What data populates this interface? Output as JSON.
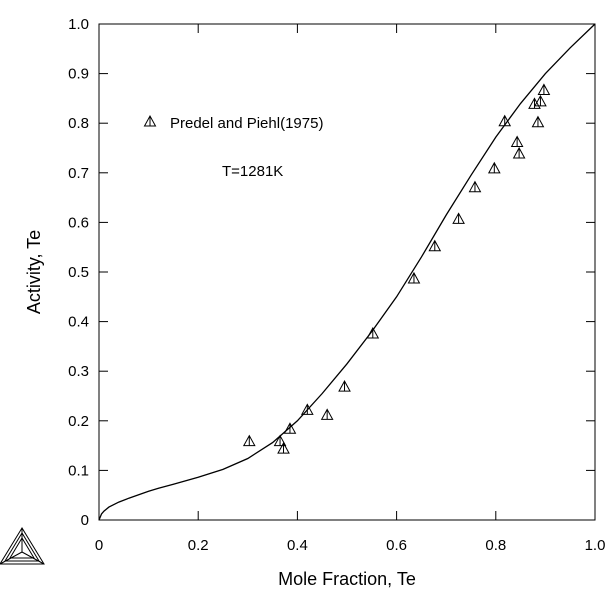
{
  "chart_data": {
    "type": "scatter",
    "title": "",
    "xlabel": "Mole Fraction, Te",
    "ylabel": "Activity, Te",
    "xlim": [
      0,
      1
    ],
    "ylim": [
      0,
      1
    ],
    "x_ticks": [
      0,
      0.2,
      0.4,
      0.6,
      0.8,
      1.0
    ],
    "x_tick_labels": [
      "0",
      "0.2",
      "0.4",
      "0.6",
      "0.8",
      "1.0"
    ],
    "y_ticks": [
      0,
      0.1,
      0.2,
      0.3,
      0.4,
      0.5,
      0.6,
      0.7,
      0.8,
      0.9,
      1.0
    ],
    "y_tick_labels": [
      "0",
      "0.1",
      "0.2",
      "0.3",
      "0.4",
      "0.5",
      "0.6",
      "0.7",
      "0.8",
      "0.9",
      "1.0"
    ],
    "grid": false,
    "legend_position": "upper-left",
    "annotation": "T=1281K",
    "series": [
      {
        "name": "",
        "kind": "line",
        "points": [
          [
            0,
            0
          ],
          [
            0.005,
            0.012
          ],
          [
            0.01,
            0.018
          ],
          [
            0.02,
            0.026
          ],
          [
            0.04,
            0.036
          ],
          [
            0.06,
            0.044
          ],
          [
            0.08,
            0.051
          ],
          [
            0.1,
            0.058
          ],
          [
            0.12,
            0.064
          ],
          [
            0.15,
            0.072
          ],
          [
            0.2,
            0.086
          ],
          [
            0.25,
            0.102
          ],
          [
            0.3,
            0.124
          ],
          [
            0.35,
            0.156
          ],
          [
            0.4,
            0.2
          ],
          [
            0.45,
            0.255
          ],
          [
            0.5,
            0.315
          ],
          [
            0.55,
            0.38
          ],
          [
            0.6,
            0.45
          ],
          [
            0.65,
            0.53
          ],
          [
            0.7,
            0.615
          ],
          [
            0.75,
            0.695
          ],
          [
            0.8,
            0.772
          ],
          [
            0.85,
            0.84
          ],
          [
            0.9,
            0.9
          ],
          [
            0.95,
            0.952
          ],
          [
            1.0,
            1.0
          ]
        ]
      },
      {
        "name": "Predel and Piehl(1975)",
        "kind": "scatter",
        "marker": "triangle",
        "points": [
          [
            0.303,
            0.16
          ],
          [
            0.365,
            0.16
          ],
          [
            0.372,
            0.145
          ],
          [
            0.385,
            0.185
          ],
          [
            0.42,
            0.223
          ],
          [
            0.46,
            0.213
          ],
          [
            0.495,
            0.27
          ],
          [
            0.552,
            0.377
          ],
          [
            0.635,
            0.488
          ],
          [
            0.677,
            0.553
          ],
          [
            0.725,
            0.608
          ],
          [
            0.758,
            0.672
          ],
          [
            0.797,
            0.71
          ],
          [
            0.818,
            0.805
          ],
          [
            0.843,
            0.763
          ],
          [
            0.847,
            0.74
          ],
          [
            0.878,
            0.84
          ],
          [
            0.885,
            0.803
          ],
          [
            0.89,
            0.845
          ],
          [
            0.897,
            0.868
          ]
        ]
      }
    ]
  }
}
